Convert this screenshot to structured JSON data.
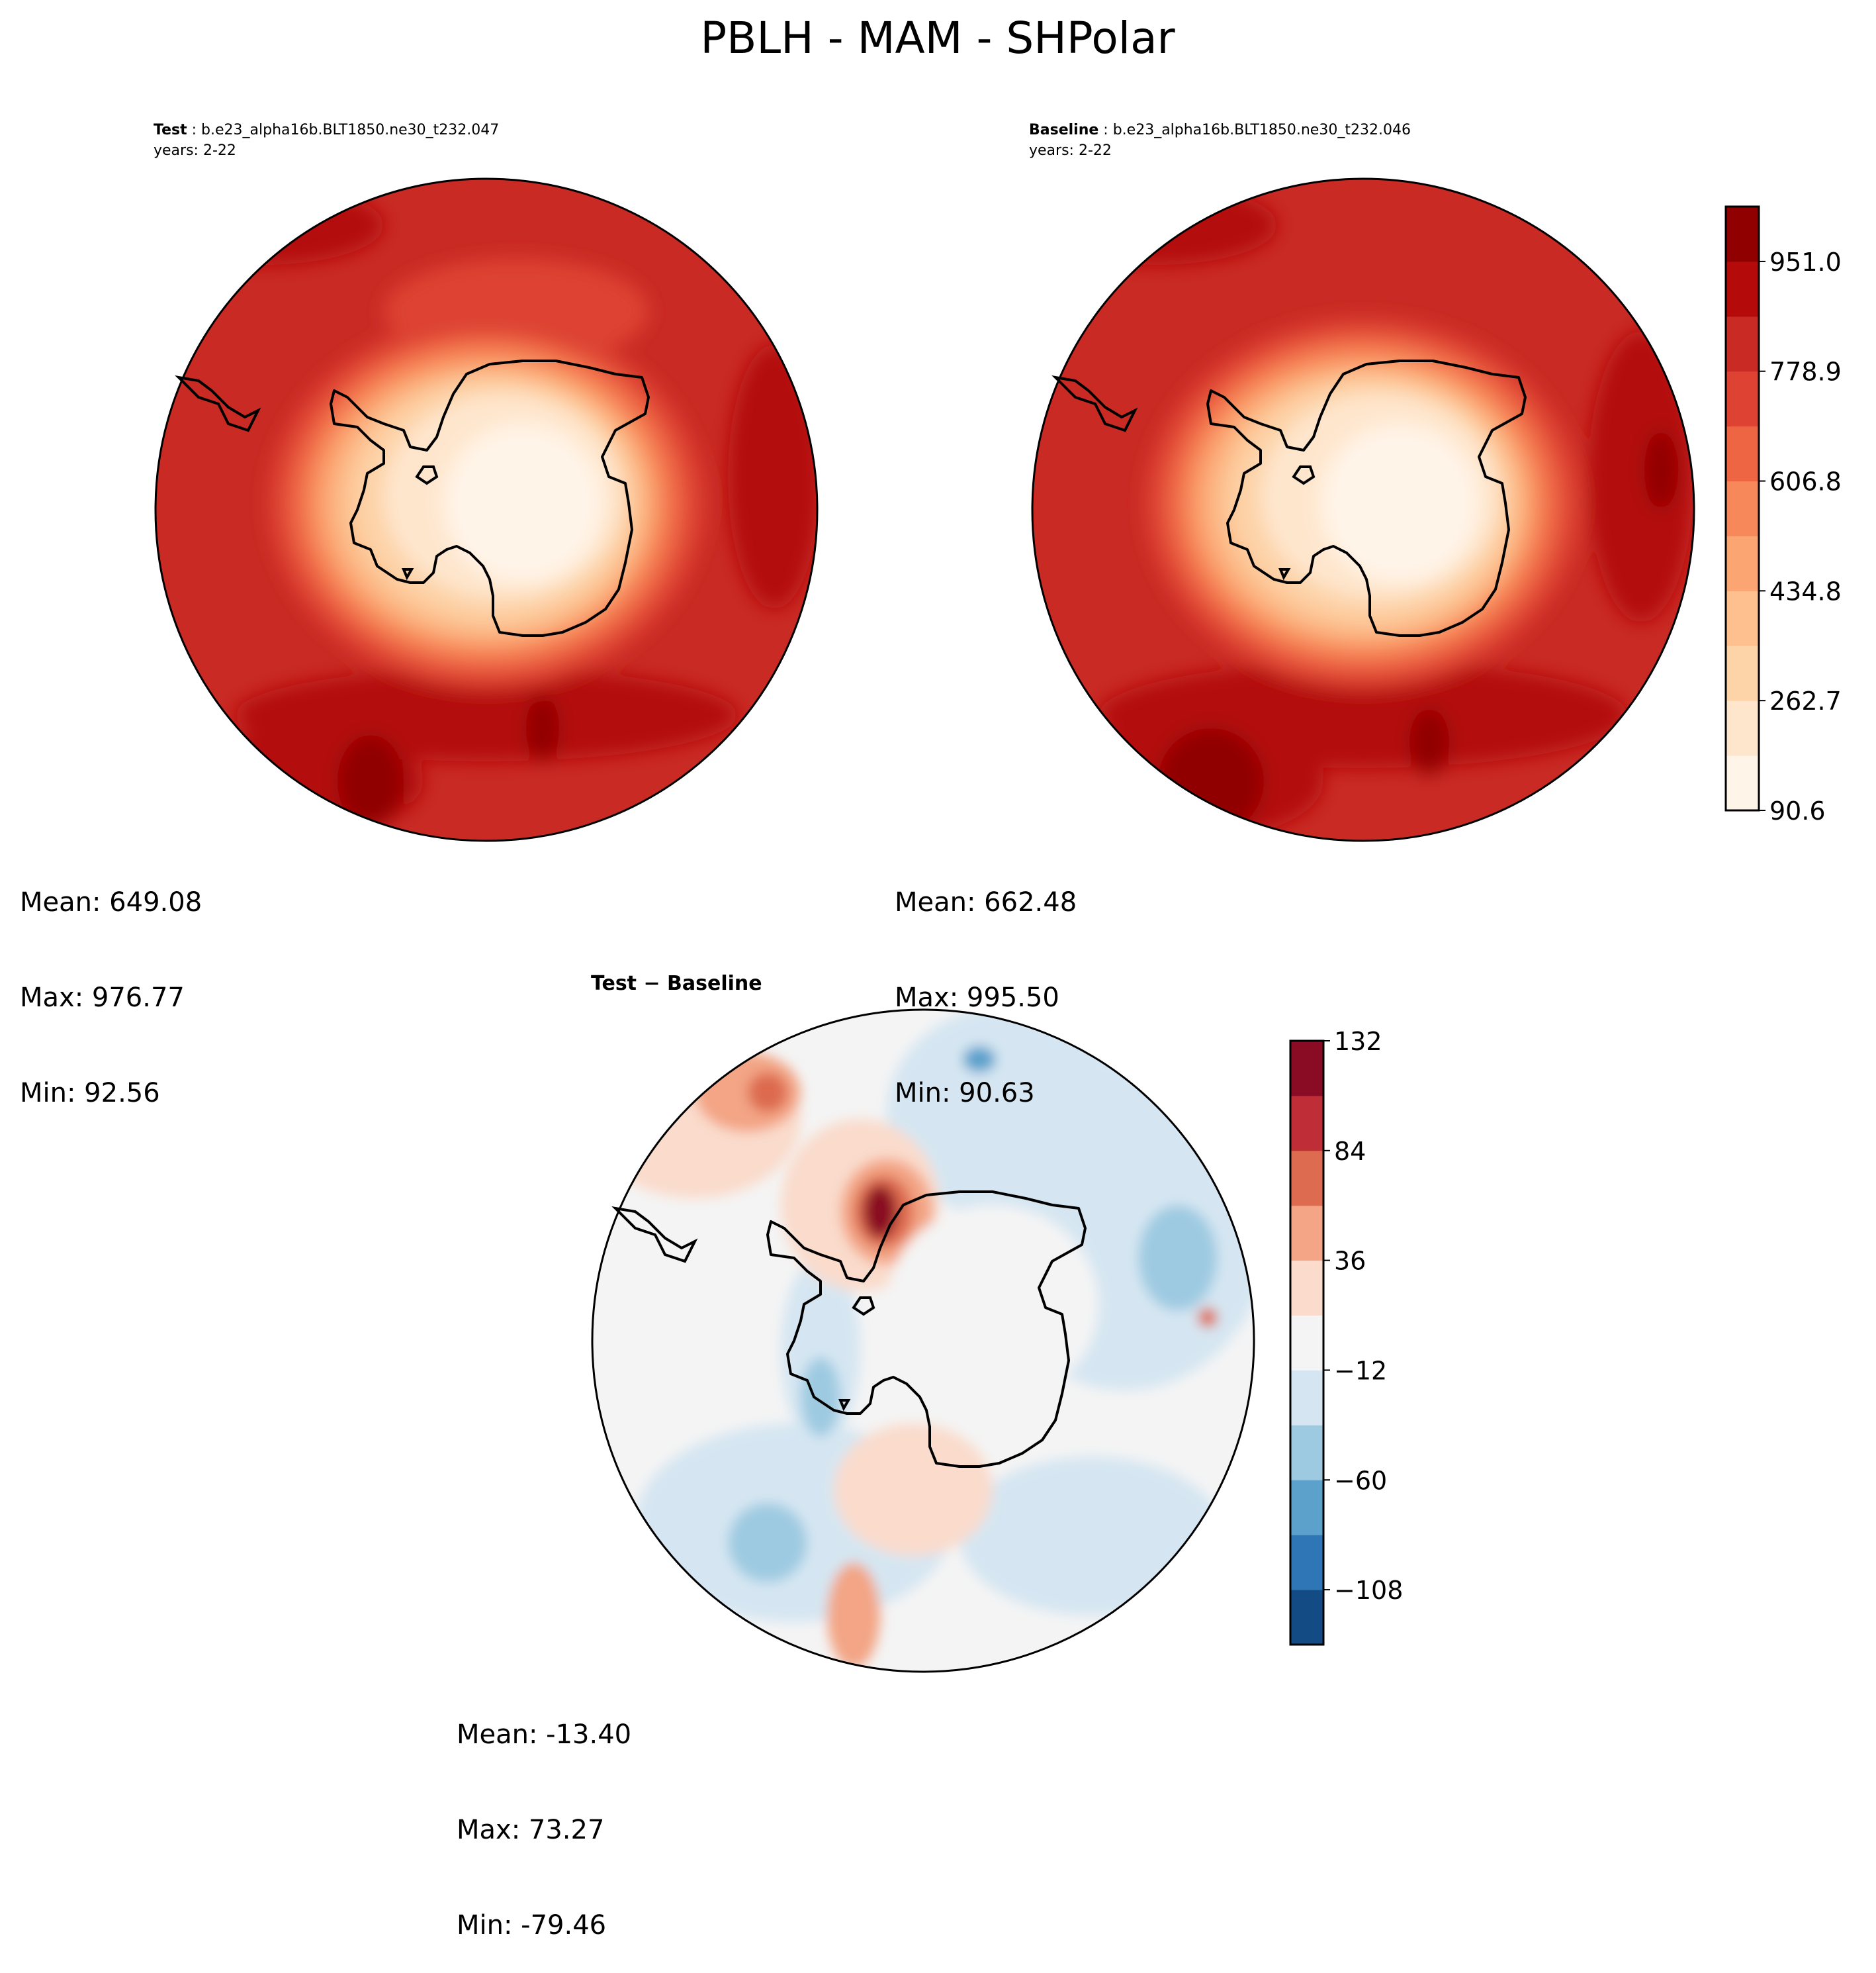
{
  "chart_data": {
    "type": "contour-map",
    "title": "PBLH - MAM - SHPolar",
    "panels": [
      {
        "id": "test",
        "label": "Test",
        "case": "b.e23_alpha16b.BLT1850.ne30_t232.047",
        "years": "years: 2-22",
        "stats": {
          "mean": "Mean: 649.08",
          "max": "Max: 976.77",
          "min": "Min: 92.56"
        },
        "values": {
          "mean": 649.08,
          "max": 976.77,
          "min": 92.56
        }
      },
      {
        "id": "baseline",
        "label": "Baseline",
        "case": "b.e23_alpha16b.BLT1850.ne30_t232.046",
        "years": "years: 2-22",
        "stats": {
          "mean": "Mean: 662.48",
          "max": "Max: 995.50",
          "min": "Min: 90.63"
        },
        "values": {
          "mean": 662.48,
          "max": 995.5,
          "min": 90.63
        }
      },
      {
        "id": "diff",
        "label": "Test − Baseline",
        "stats": {
          "mean": "Mean: -13.40",
          "max": "Max: 73.27",
          "min": "Min: -79.46"
        },
        "values": {
          "mean": -13.4,
          "max": 73.27,
          "min": -79.46
        }
      }
    ],
    "colorbar_main": {
      "cmap": "Reds",
      "colors": [
        "#fff4e8",
        "#fee6cd",
        "#fdd3a8",
        "#fdc08e",
        "#fba572",
        "#f78859",
        "#ee6544",
        "#dd4232",
        "#c92a24",
        "#b40a0a",
        "#900000"
      ],
      "ticks": [
        "90.6",
        "262.7",
        "434.8",
        "606.8",
        "778.9",
        "951.0"
      ],
      "range": [
        90.6,
        1037.0
      ]
    },
    "colorbar_diff": {
      "cmap": "RdBu_r",
      "colors": [
        "#134b85",
        "#2e76b5",
        "#5ba1cc",
        "#9ecae1",
        "#d5e6f2",
        "#f4f4f4",
        "#fadbcc",
        "#f3a585",
        "#dd6b50",
        "#bf2e36",
        "#8a0c24"
      ],
      "ticks": [
        "−108",
        "−60",
        "−12",
        "36",
        "84",
        "132"
      ],
      "range": [
        -132,
        132
      ]
    }
  }
}
